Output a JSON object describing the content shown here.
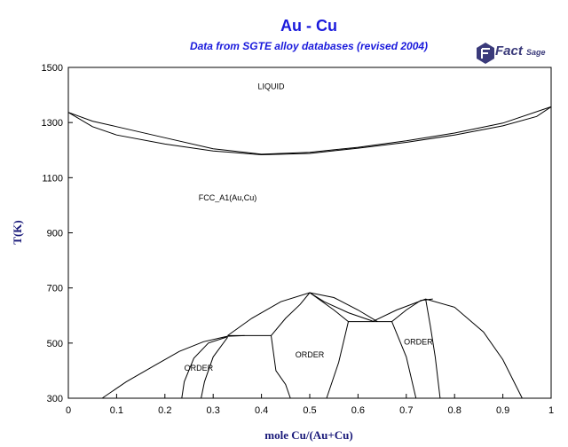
{
  "chart_data": {
    "type": "line",
    "title": "Au - Cu",
    "subtitle": "Data from SGTE alloy databases (revised 2004)",
    "xlabel": "mole Cu/(Au+Cu)",
    "ylabel": "T(K)",
    "xlim": [
      0,
      1
    ],
    "ylim": [
      300,
      1500
    ],
    "xticks": [
      "0",
      "0.1",
      "0.2",
      "0.3",
      "0.4",
      "0.5",
      "0.6",
      "0.7",
      "0.8",
      "0.9",
      "1"
    ],
    "yticks": [
      "300",
      "500",
      "700",
      "900",
      "1100",
      "1300",
      "1500"
    ],
    "grid": false,
    "region_labels": [
      {
        "text": "LIQUID",
        "x": 0.42,
        "y": 1431
      },
      {
        "text": "FCC_A1(Au,Cu)",
        "x": 0.33,
        "y": 1027
      },
      {
        "text": "ORDER",
        "x": 0.27,
        "y": 409
      },
      {
        "text": "ORDER",
        "x": 0.5,
        "y": 458
      },
      {
        "text": "ORDER",
        "x": 0.725,
        "y": 504
      }
    ],
    "series": [
      {
        "values": [
          [
            0,
            1337
          ],
          [
            0.05,
            1305
          ],
          [
            0.1,
            1285
          ],
          [
            0.2,
            1245
          ],
          [
            0.3,
            1205
          ],
          [
            0.4,
            1185
          ],
          [
            0.5,
            1192
          ],
          [
            0.6,
            1210
          ],
          [
            0.7,
            1234
          ],
          [
            0.8,
            1262
          ],
          [
            0.9,
            1298
          ],
          [
            1,
            1357
          ]
        ]
      },
      {
        "values": [
          [
            0,
            1337
          ],
          [
            0.05,
            1285
          ],
          [
            0.1,
            1255
          ],
          [
            0.2,
            1222
          ],
          [
            0.3,
            1197
          ],
          [
            0.4,
            1183
          ],
          [
            0.5,
            1188
          ],
          [
            0.6,
            1207
          ],
          [
            0.7,
            1228
          ],
          [
            0.8,
            1255
          ],
          [
            0.9,
            1288
          ],
          [
            0.97,
            1322
          ],
          [
            1,
            1357
          ]
        ]
      },
      {
        "values": [
          [
            0.07,
            300
          ],
          [
            0.12,
            360
          ],
          [
            0.18,
            420
          ],
          [
            0.23,
            470
          ],
          [
            0.28,
            505
          ],
          [
            0.33,
            525
          ],
          [
            0.365,
            527
          ]
        ]
      },
      {
        "values": [
          [
            0.235,
            300
          ],
          [
            0.24,
            360
          ],
          [
            0.26,
            445
          ],
          [
            0.29,
            500
          ],
          [
            0.33,
            523
          ]
        ]
      },
      {
        "values": [
          [
            0.275,
            300
          ],
          [
            0.282,
            360
          ],
          [
            0.3,
            450
          ],
          [
            0.33,
            521
          ]
        ]
      },
      {
        "values": [
          [
            0.33,
            527
          ],
          [
            0.42,
            527
          ]
        ]
      },
      {
        "values": [
          [
            0.42,
            527
          ],
          [
            0.43,
            400
          ],
          [
            0.45,
            350
          ],
          [
            0.46,
            300
          ]
        ]
      },
      {
        "values": [
          [
            0.33,
            527
          ],
          [
            0.38,
            590
          ],
          [
            0.44,
            650
          ],
          [
            0.5,
            683
          ],
          [
            0.55,
            665
          ],
          [
            0.6,
            620
          ],
          [
            0.64,
            578
          ]
        ]
      },
      {
        "values": [
          [
            0.42,
            527
          ],
          [
            0.45,
            590
          ],
          [
            0.48,
            640
          ],
          [
            0.5,
            683
          ]
        ]
      },
      {
        "values": [
          [
            0.5,
            683
          ],
          [
            0.53,
            650
          ],
          [
            0.58,
            610
          ],
          [
            0.63,
            580
          ]
        ]
      },
      {
        "values": [
          [
            0.5,
            683
          ],
          [
            0.55,
            620
          ],
          [
            0.58,
            578
          ]
        ]
      },
      {
        "values": [
          [
            0.535,
            300
          ],
          [
            0.56,
            430
          ],
          [
            0.58,
            578
          ]
        ]
      },
      {
        "values": [
          [
            0.58,
            578
          ],
          [
            0.67,
            578
          ]
        ]
      },
      {
        "values": [
          [
            0.63,
            578
          ],
          [
            0.68,
            620
          ],
          [
            0.74,
            660
          ],
          [
            0.8,
            630
          ],
          [
            0.86,
            540
          ],
          [
            0.9,
            440
          ],
          [
            0.94,
            300
          ]
        ]
      },
      {
        "values": [
          [
            0.67,
            578
          ],
          [
            0.7,
            620
          ],
          [
            0.73,
            655
          ],
          [
            0.755,
            660
          ]
        ]
      },
      {
        "values": [
          [
            0.67,
            578
          ],
          [
            0.7,
            450
          ],
          [
            0.72,
            300
          ]
        ]
      },
      {
        "values": [
          [
            0.74,
            660
          ],
          [
            0.75,
            560
          ],
          [
            0.76,
            450
          ],
          [
            0.77,
            300
          ]
        ]
      }
    ]
  },
  "logo": {
    "name": "FactSage",
    "prefix": "Fact",
    "suffix": "Sage"
  }
}
